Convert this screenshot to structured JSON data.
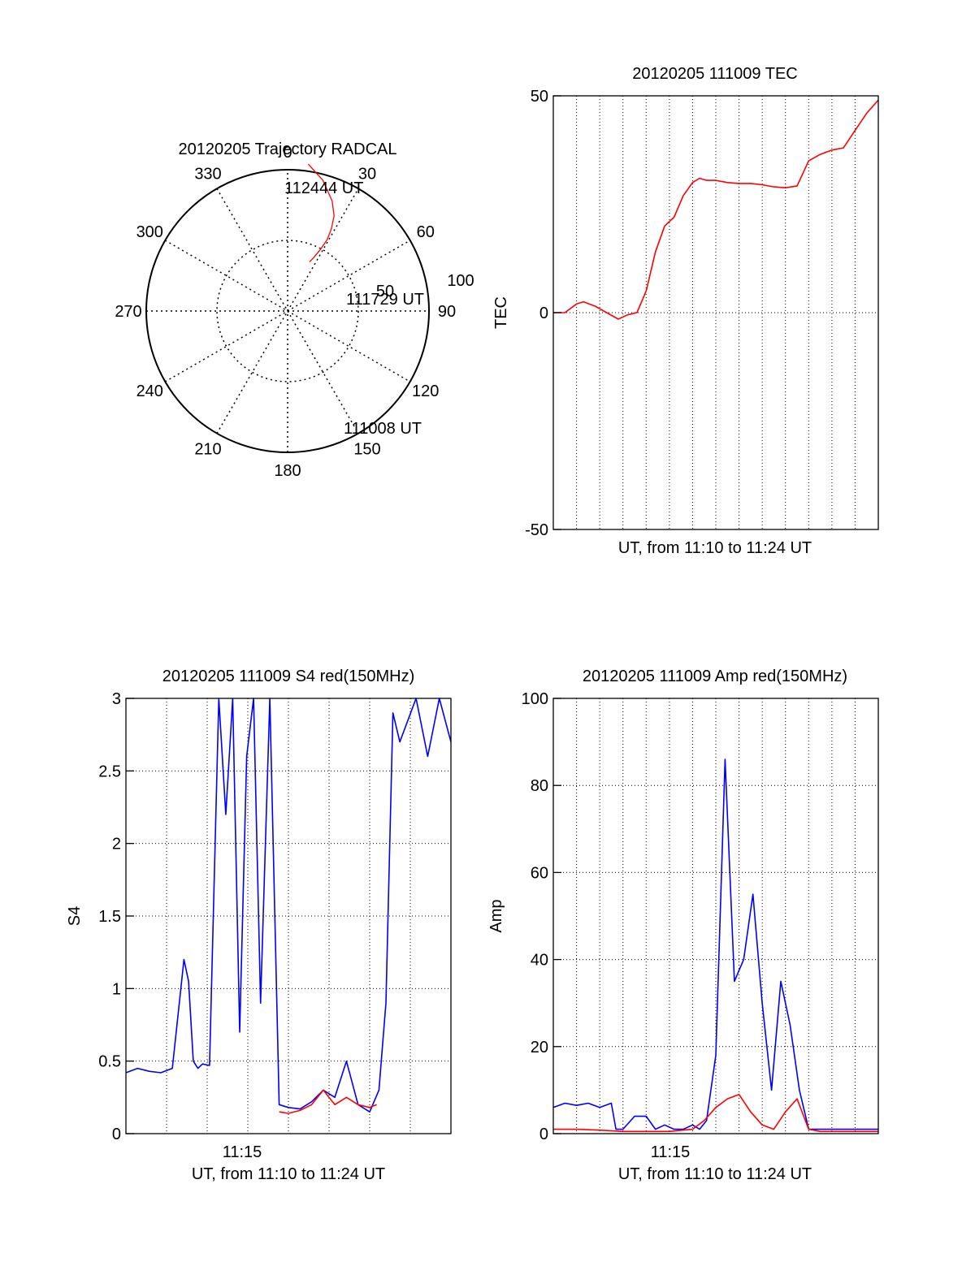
{
  "colors": {
    "red": "#ff0000",
    "blue": "#0000ff",
    "axis": "#000000",
    "grid": "#000000"
  },
  "chart_data": [
    {
      "id": "polar",
      "type": "polar-trajectory",
      "title": "20120205 Trajectory RADCAL",
      "azimuth_labels": [
        "0",
        "30",
        "60",
        "90",
        "120",
        "150",
        "180",
        "210",
        "240",
        "270",
        "300",
        "330"
      ],
      "radial_labels": [
        "50",
        "100"
      ],
      "rlim": [
        0,
        100
      ],
      "grid": true,
      "trajectory": {
        "color": "red",
        "points": [
          [
            8,
            105
          ],
          [
            15,
            96
          ],
          [
            22,
            84
          ],
          [
            26,
            75
          ],
          [
            28,
            66
          ],
          [
            29,
            58
          ],
          [
            28,
            49
          ],
          [
            26,
            42
          ],
          [
            24,
            38
          ]
        ]
      },
      "annotations": [
        "112444 UT",
        "111729 UT",
        "111008 UT"
      ]
    },
    {
      "id": "tec",
      "type": "line",
      "title": "20120205 111009 TEC",
      "xlabel": "UT, from 11:10 to 11:24 UT",
      "ylabel": "TEC",
      "yticks": [
        "50",
        "0",
        "-50"
      ],
      "ylim": [
        -50,
        50
      ],
      "xlim_min": [
        0,
        14
      ],
      "grid": true,
      "series": [
        {
          "color": "red",
          "x": [
            0,
            0.5,
            1,
            1.3,
            1.8,
            2.3,
            2.8,
            3.2,
            3.6,
            4.0,
            4.4,
            4.8,
            5.2,
            5.6,
            6.0,
            6.3,
            6.6,
            7.0,
            7.5,
            8.0,
            8.5,
            9.0,
            9.5,
            10.0,
            10.5,
            11.0,
            11.5,
            12.0,
            12.5,
            13.0,
            13.5,
            14.0
          ],
          "values": [
            0,
            0,
            2,
            2.5,
            1.5,
            0,
            -1.5,
            -0.5,
            0,
            5,
            14,
            20,
            22,
            27,
            30,
            31,
            30.5,
            30.5,
            30,
            29.8,
            29.8,
            29.5,
            29,
            28.8,
            29.2,
            35,
            36.5,
            37.5,
            38,
            42,
            46,
            49
          ]
        }
      ]
    },
    {
      "id": "s4",
      "type": "line",
      "title": "20120205 111009 S4 red(150MHz)",
      "xlabel": "UT, from 11:10 to 11:24 UT",
      "ylabel": "S4",
      "xticks": [
        "11:15"
      ],
      "yticks": [
        "0",
        "0.5",
        "1",
        "1.5",
        "2",
        "2.5",
        "3"
      ],
      "ylim": [
        0,
        3
      ],
      "xlim_min": [
        0,
        14
      ],
      "grid": true,
      "series": [
        {
          "color": "blue",
          "x": [
            0,
            0.5,
            1,
            1.5,
            2.0,
            2.5,
            2.7,
            2.9,
            3.1,
            3.3,
            3.6,
            4.0,
            4.3,
            4.6,
            4.9,
            5.2,
            5.5,
            5.8,
            6.2,
            6.6,
            7.0,
            7.5,
            8.0,
            8.5,
            9.0,
            9.5,
            10.0,
            10.5,
            10.9,
            11.2,
            11.5,
            11.8,
            12.5,
            13.0,
            13.5,
            14.0
          ],
          "values": [
            0.42,
            0.45,
            0.43,
            0.42,
            0.45,
            1.2,
            1.05,
            0.5,
            0.45,
            0.48,
            0.47,
            3,
            2.2,
            3,
            0.7,
            2.6,
            3,
            0.9,
            3,
            0.2,
            0.18,
            0.17,
            0.22,
            0.3,
            0.25,
            0.5,
            0.2,
            0.15,
            0.3,
            0.9,
            2.9,
            2.7,
            3,
            2.6,
            3,
            2.7
          ]
        },
        {
          "color": "red",
          "x": [
            6.6,
            7.0,
            7.5,
            8.0,
            8.5,
            9.0,
            9.5,
            10.0,
            10.5,
            10.8
          ],
          "values": [
            0.15,
            0.14,
            0.16,
            0.2,
            0.3,
            0.2,
            0.25,
            0.2,
            0.18,
            0.2
          ]
        }
      ]
    },
    {
      "id": "amp",
      "type": "line",
      "title": "20120205 111009 Amp red(150MHz)",
      "xlabel": "UT, from 11:10 to 11:24 UT",
      "ylabel": "Amp",
      "xticks": [
        "11:15"
      ],
      "yticks": [
        "0",
        "20",
        "40",
        "60",
        "80",
        "100"
      ],
      "ylim": [
        0,
        100
      ],
      "xlim_min": [
        0,
        14
      ],
      "grid": true,
      "series": [
        {
          "color": "blue",
          "x": [
            0,
            0.5,
            1.0,
            1.5,
            2.0,
            2.5,
            2.7,
            3.0,
            3.5,
            4.0,
            4.4,
            4.8,
            5.2,
            5.6,
            6.0,
            6.3,
            6.6,
            7.0,
            7.4,
            7.8,
            8.2,
            8.6,
            9.0,
            9.4,
            9.8,
            10.2,
            10.6,
            11.0,
            11.4,
            11.8,
            12.2,
            12.6,
            13.0,
            13.5,
            14.0
          ],
          "values": [
            6,
            7,
            6.5,
            7,
            6,
            7,
            1,
            1,
            4,
            4,
            1,
            2,
            1,
            1,
            2,
            1,
            3,
            18,
            86,
            35,
            40,
            55,
            30,
            10,
            35,
            25,
            10,
            1,
            1,
            1,
            1,
            1,
            1,
            1,
            1
          ]
        },
        {
          "color": "red",
          "x": [
            0,
            1,
            2,
            3,
            4,
            5,
            6,
            6.5,
            7.0,
            7.5,
            8.0,
            8.5,
            9.0,
            9.5,
            10.0,
            10.5,
            11.0,
            11.5,
            12,
            13,
            14
          ],
          "values": [
            1,
            1,
            0.8,
            0.5,
            0.5,
            0.5,
            1,
            3,
            6,
            8,
            9,
            5,
            2,
            1,
            5,
            8,
            1,
            0.5,
            0.5,
            0.5,
            0.5
          ]
        }
      ]
    }
  ]
}
